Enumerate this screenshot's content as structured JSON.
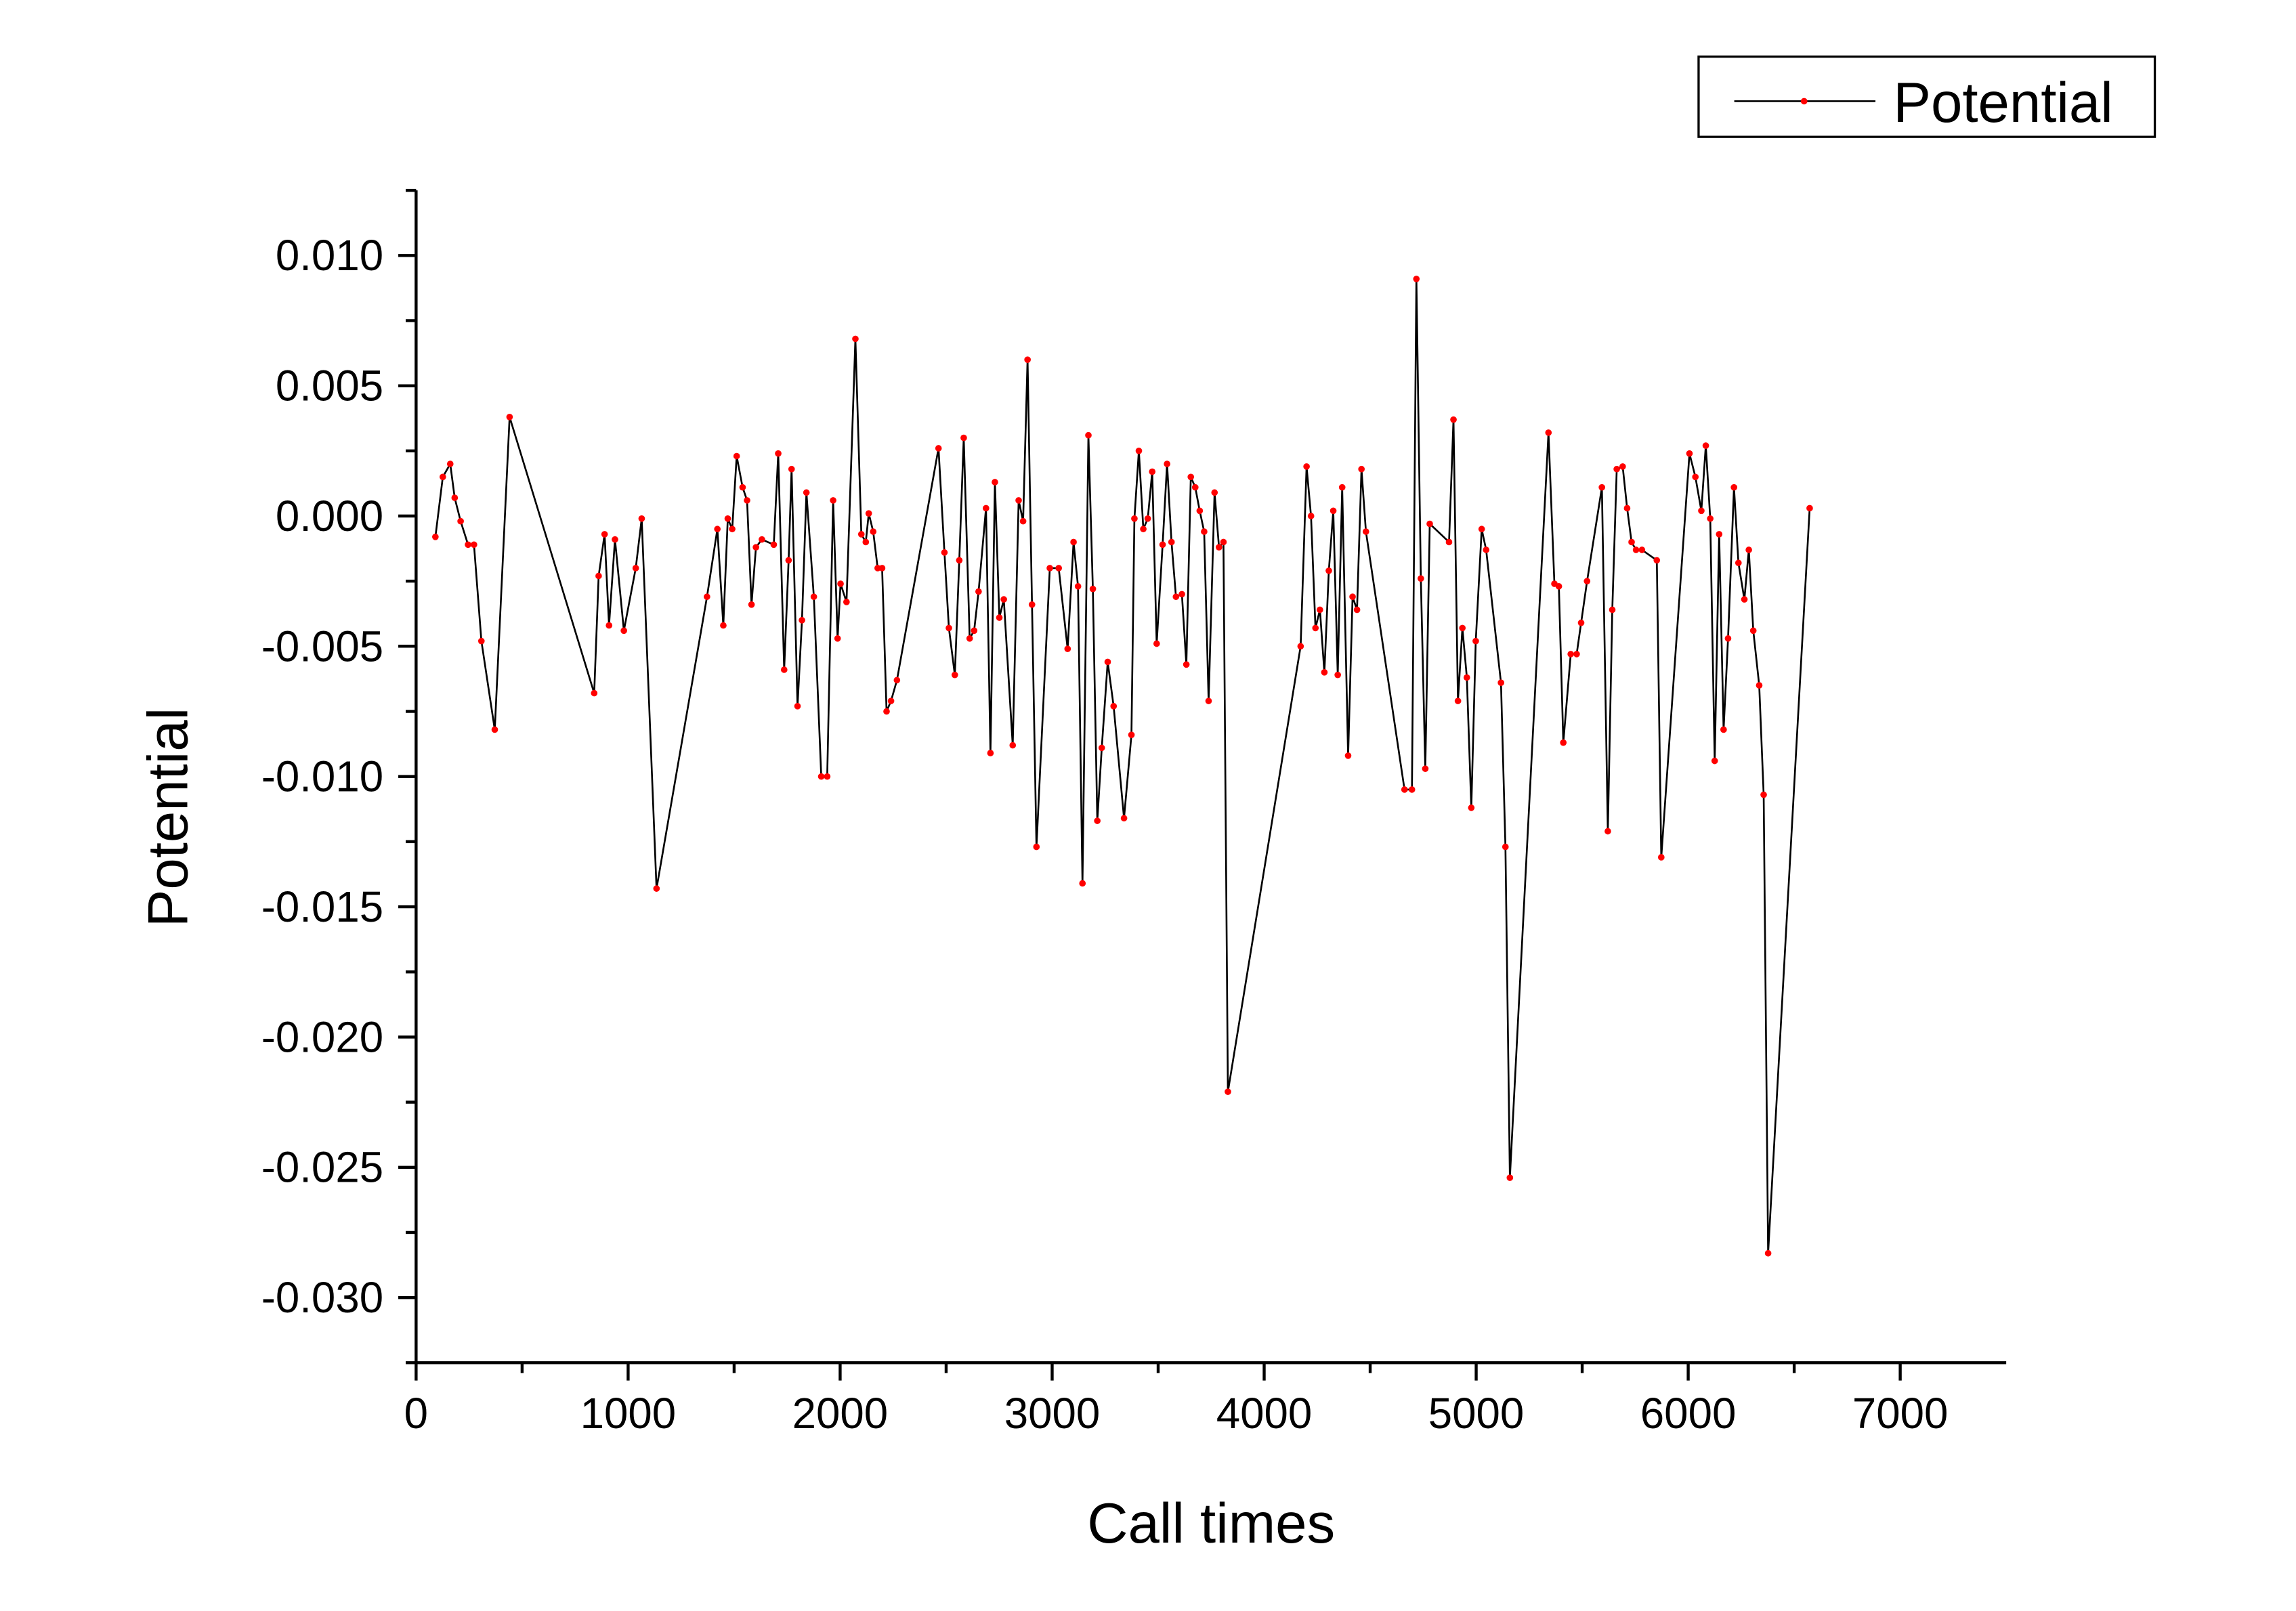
{
  "chart_data": {
    "type": "line",
    "xlabel": "Call times",
    "ylabel": "Potential",
    "xlim": [
      0,
      7500
    ],
    "ylim": [
      -0.0325,
      0.0125
    ],
    "xticks": [
      0,
      1000,
      2000,
      3000,
      4000,
      5000,
      6000,
      7000
    ],
    "yticks": [
      {
        "value": -0.03,
        "label": "-0.030"
      },
      {
        "value": -0.025,
        "label": "-0.025"
      },
      {
        "value": -0.02,
        "label": "-0.020"
      },
      {
        "value": -0.015,
        "label": "-0.015"
      },
      {
        "value": -0.01,
        "label": "-0.010"
      },
      {
        "value": -0.005,
        "label": "-0.005"
      },
      {
        "value": 0,
        "label": "0.000"
      },
      {
        "value": 0.005,
        "label": "0.005"
      },
      {
        "value": 0.01,
        "label": "0.010"
      }
    ],
    "legend": "top-right",
    "x": [
      91,
      126,
      161,
      182,
      210,
      245,
      273,
      308,
      371,
      441,
      840,
      861,
      889,
      910,
      938,
      980,
      1036,
      1064,
      1134,
      1372,
      1421,
      1449,
      1470,
      1491,
      1512,
      1540,
      1561,
      1582,
      1603,
      1631,
      1687,
      1708,
      1736,
      1757,
      1771,
      1799,
      1820,
      1841,
      1876,
      1911,
      1939,
      1967,
      1988,
      2002,
      2030,
      2072,
      2100,
      2121,
      2135,
      2156,
      2177,
      2198,
      2219,
      2240,
      2268,
      2464,
      2492,
      2513,
      2541,
      2562,
      2583,
      2611,
      2632,
      2653,
      2688,
      2709,
      2730,
      2751,
      2772,
      2814,
      2842,
      2863,
      2884,
      2905,
      2926,
      2989,
      3031,
      3073,
      3101,
      3122,
      3143,
      3171,
      3192,
      3213,
      3234,
      3262,
      3290,
      3339,
      3374,
      3388,
      3409,
      3430,
      3451,
      3472,
      3493,
      3521,
      3542,
      3563,
      3584,
      3612,
      3633,
      3654,
      3675,
      3696,
      3717,
      3738,
      3766,
      3787,
      3808,
      3829,
      4172,
      4200,
      4221,
      4242,
      4263,
      4284,
      4305,
      4326,
      4347,
      4368,
      4396,
      4417,
      4438,
      4459,
      4480,
      4662,
      4697,
      4718,
      4739,
      4760,
      4781,
      4872,
      4893,
      4914,
      4935,
      4956,
      4977,
      4998,
      5026,
      5047,
      5117,
      5138,
      5159,
      5341,
      5369,
      5390,
      5411,
      5446,
      5474,
      5495,
      5523,
      5593,
      5621,
      5642,
      5663,
      5691,
      5712,
      5733,
      5754,
      5782,
      5852,
      5873,
      6006,
      6034,
      6062,
      6083,
      6104,
      6125,
      6146,
      6167,
      6188,
      6216,
      6237,
      6265,
      6286,
      6307,
      6335,
      6356,
      6377,
      6573
    ],
    "series": [
      {
        "name": "Potential",
        "color": "#000000",
        "marker_color": "#ff0000",
        "values": [
          -0.0008,
          0.0015,
          0.002,
          0.0007,
          -0.0002,
          -0.0011,
          -0.0011,
          -0.0048,
          -0.0082,
          0.0038,
          -0.0068,
          -0.0023,
          -0.0007,
          -0.0042,
          -0.0009,
          -0.0044,
          -0.002,
          -0.0001,
          -0.0143,
          -0.0031,
          -0.0005,
          -0.0042,
          -0.0001,
          -0.0005,
          0.0023,
          0.0011,
          0.0006,
          -0.0034,
          -0.0012,
          -0.0009,
          -0.0011,
          0.0024,
          -0.0059,
          -0.0017,
          0.0018,
          -0.0073,
          -0.004,
          0.0009,
          -0.0031,
          -0.01,
          -0.01,
          0.0006,
          -0.0047,
          -0.0026,
          -0.0033,
          0.0068,
          -0.0007,
          -0.001,
          0.0001,
          -0.0006,
          -0.002,
          -0.002,
          -0.0075,
          -0.0071,
          -0.0063,
          0.0026,
          -0.0014,
          -0.0043,
          -0.0061,
          -0.0017,
          0.003,
          -0.0047,
          -0.0044,
          -0.0029,
          0.0003,
          -0.0091,
          0.0013,
          -0.0039,
          -0.0032,
          -0.0088,
          0.0006,
          -0.0002,
          0.006,
          -0.0034,
          -0.0127,
          -0.002,
          -0.002,
          -0.0051,
          -0.001,
          -0.0027,
          -0.0141,
          0.0031,
          -0.0028,
          -0.0117,
          -0.0089,
          -0.0056,
          -0.0073,
          -0.0116,
          -0.0084,
          -0.0001,
          0.0025,
          -0.0005,
          -0.0001,
          0.0017,
          -0.0049,
          -0.0011,
          0.002,
          -0.001,
          -0.0031,
          -0.003,
          -0.0057,
          0.0015,
          0.0011,
          0.0002,
          -0.0006,
          -0.0071,
          0.0009,
          -0.0012,
          -0.001,
          -0.0221,
          -0.005,
          0.0019,
          0,
          -0.0043,
          -0.0036,
          -0.006,
          -0.0021,
          0.0002,
          -0.0061,
          0.0011,
          -0.0092,
          -0.0031,
          -0.0036,
          0.0018,
          -0.0006,
          -0.0105,
          -0.0105,
          0.0091,
          -0.0024,
          -0.0097,
          -0.0003,
          -0.001,
          0.0037,
          -0.0071,
          -0.0043,
          -0.0062,
          -0.0112,
          -0.0048,
          -0.0005,
          -0.0013,
          -0.0064,
          -0.0127,
          -0.0254,
          0.0032,
          -0.0026,
          -0.0027,
          -0.0087,
          -0.0053,
          -0.0053,
          -0.0041,
          -0.0025,
          0.0011,
          -0.0121,
          -0.0036,
          0.0018,
          0.0019,
          0.0003,
          -0.001,
          -0.0013,
          -0.0013,
          -0.0017,
          -0.0131,
          0.0024,
          0.0015,
          0.0002,
          0.0027,
          -0.0001,
          -0.0094,
          -0.0007,
          -0.0082,
          -0.0047,
          0.0011,
          -0.0018,
          -0.0032,
          -0.0013,
          -0.0044,
          -0.0065,
          -0.0107,
          -0.0283,
          0.0003
        ]
      }
    ]
  }
}
